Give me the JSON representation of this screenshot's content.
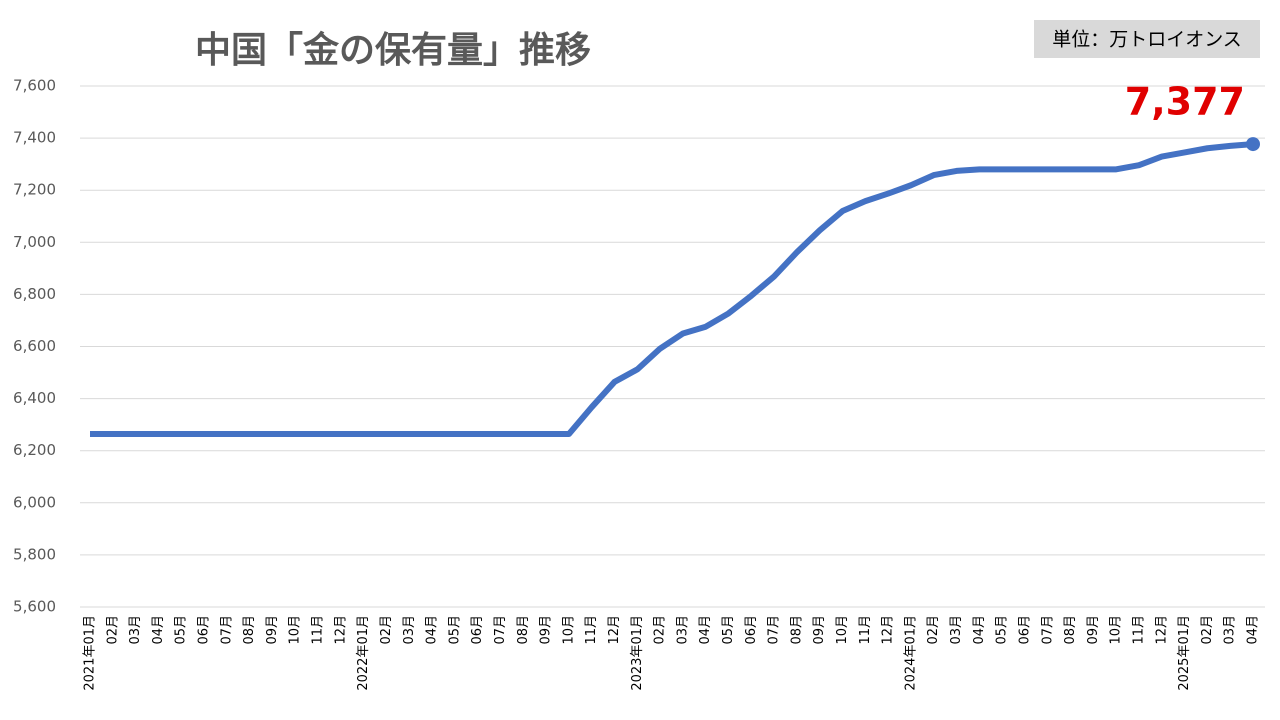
{
  "chart_data": {
    "type": "line",
    "title": "中国「金の保有量」推移",
    "unit": "単位：万トロイオンス",
    "categories": [
      "2021年01月",
      "02月",
      "03月",
      "04月",
      "05月",
      "06月",
      "07月",
      "08月",
      "09月",
      "10月",
      "11月",
      "12月",
      "2022年01月",
      "02月",
      "03月",
      "04月",
      "05月",
      "06月",
      "07月",
      "08月",
      "09月",
      "10月",
      "11月",
      "12月",
      "2023年01月",
      "02月",
      "03月",
      "04月",
      "05月",
      "06月",
      "07月",
      "08月",
      "09月",
      "10月",
      "11月",
      "12月",
      "2024年01月",
      "02月",
      "03月",
      "04月",
      "05月",
      "06月",
      "07月",
      "08月",
      "09月",
      "10月",
      "11月",
      "12月",
      "2025年01月",
      "02月",
      "03月",
      "04月"
    ],
    "values": [
      6264,
      6264,
      6264,
      6264,
      6264,
      6264,
      6264,
      6264,
      6264,
      6264,
      6264,
      6264,
      6264,
      6264,
      6264,
      6264,
      6264,
      6264,
      6264,
      6264,
      6264,
      6264,
      6367,
      6464,
      6512,
      6592,
      6650,
      6676,
      6727,
      6795,
      6869,
      6962,
      7046,
      7120,
      7158,
      7187,
      7219,
      7258,
      7274,
      7280,
      7280,
      7280,
      7280,
      7280,
      7280,
      7280,
      7296,
      7329,
      7345,
      7361,
      7370,
      7377
    ],
    "value_labels": [
      null,
      null,
      null,
      null,
      null,
      null,
      null,
      null,
      null,
      null,
      null,
      null,
      null,
      null,
      null,
      null,
      null,
      null,
      null,
      null,
      null,
      null,
      null,
      null,
      null,
      null,
      null,
      null,
      null,
      null,
      null,
      null,
      null,
      null,
      null,
      null,
      null,
      null,
      null,
      null,
      null,
      null,
      null,
      null,
      null,
      null,
      null,
      null,
      null,
      null,
      null,
      "7,377"
    ],
    "color": "#4472c4",
    "ylim": [
      5600,
      7600
    ],
    "yticks": [
      {
        "value": 5600,
        "label": "5,600"
      },
      {
        "value": 5800,
        "label": "5,800"
      },
      {
        "value": 6000,
        "label": "6,000"
      },
      {
        "value": 6200,
        "label": "6,200"
      },
      {
        "value": 6400,
        "label": "6,400"
      },
      {
        "value": 6600,
        "label": "6,600"
      },
      {
        "value": 6800,
        "label": "6,800"
      },
      {
        "value": 7000,
        "label": "7,000"
      },
      {
        "value": 7200,
        "label": "7,200"
      },
      {
        "value": 7400,
        "label": "7,400"
      },
      {
        "value": 7600,
        "label": "7,600"
      }
    ],
    "grid": true
  }
}
